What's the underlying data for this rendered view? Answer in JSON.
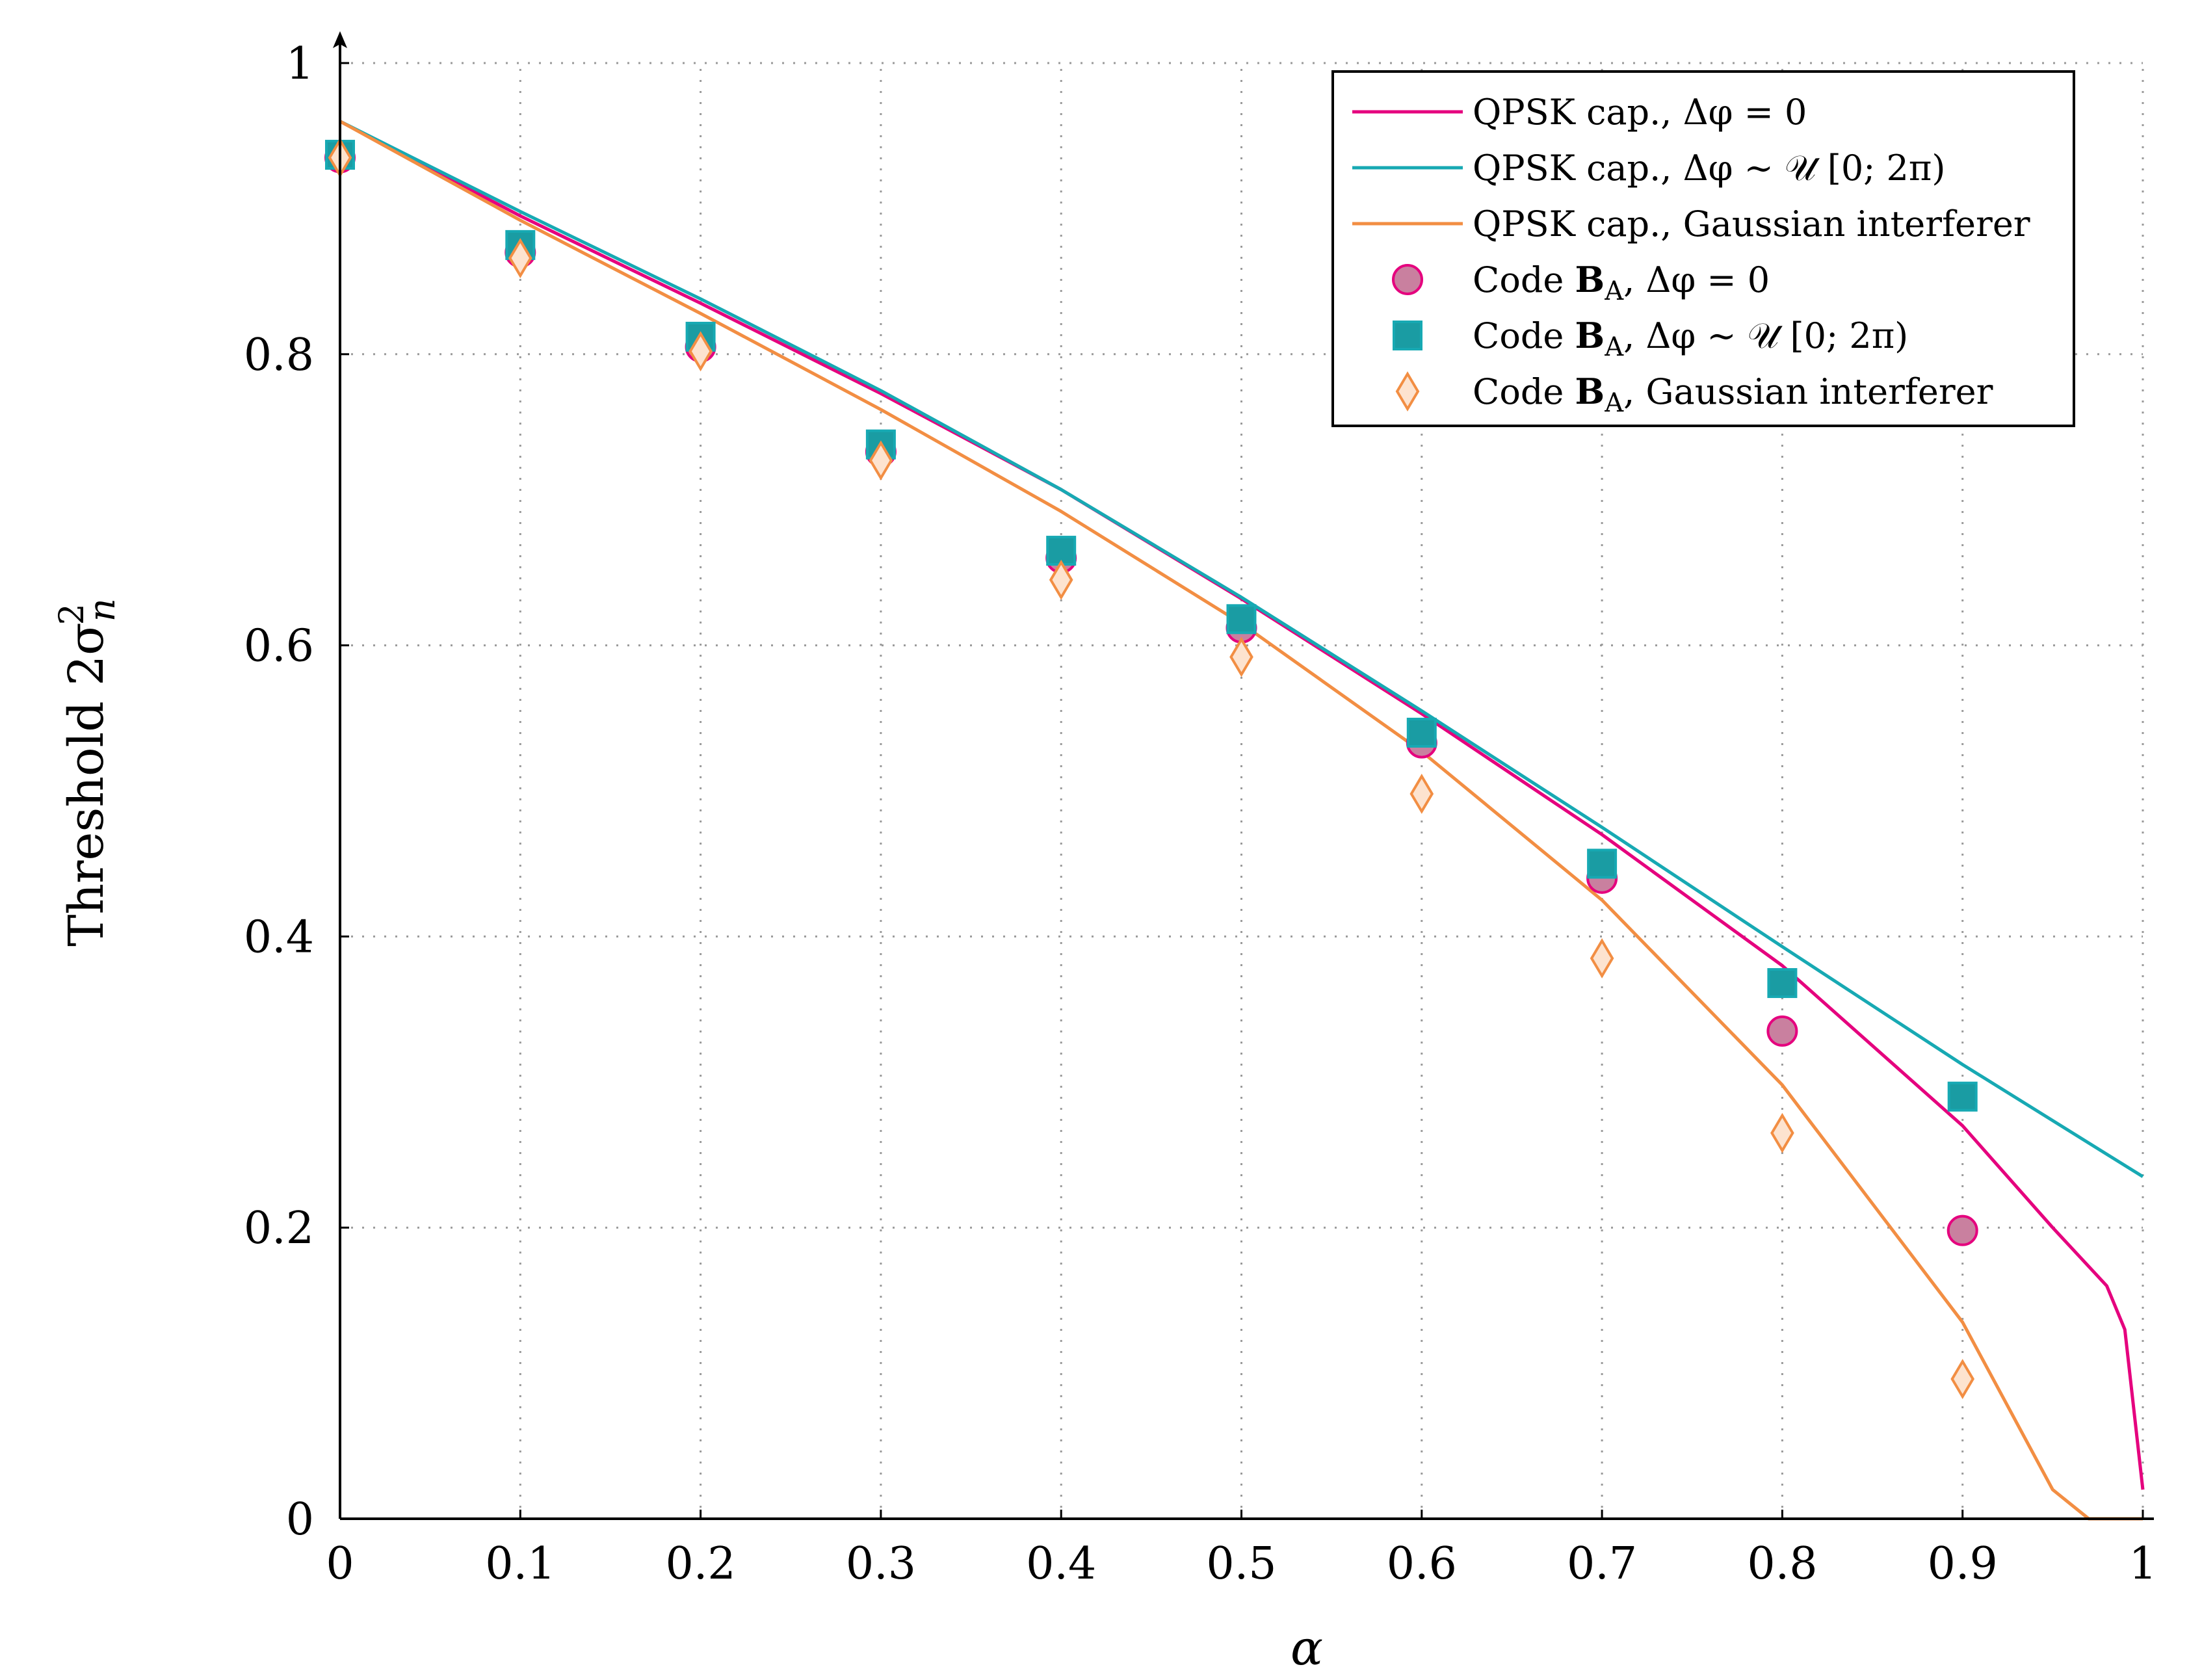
{
  "chart_data": {
    "type": "line",
    "title": "",
    "xlabel": "α",
    "ylabel": "Threshold 2σ²ₙ",
    "ylabel_parts": {
      "main": "Threshold 2σ",
      "sup": "2",
      "sub": "n"
    },
    "xlim": [
      0,
      1
    ],
    "ylim": [
      0,
      1
    ],
    "grid": true,
    "legend_position": "top-right",
    "x_ticks": [
      0,
      0.1,
      0.2,
      0.3,
      0.4,
      0.5,
      0.6,
      0.7,
      0.8,
      0.9,
      1
    ],
    "x_tick_labels": [
      "0",
      "0.1",
      "0.2",
      "0.3",
      "0.4",
      "0.5",
      "0.6",
      "0.7",
      "0.8",
      "0.9",
      "1"
    ],
    "y_ticks": [
      0,
      0.2,
      0.4,
      0.6,
      0.8,
      1
    ],
    "y_tick_labels": [
      "0",
      "0.2",
      "0.4",
      "0.6",
      "0.8",
      "1"
    ],
    "series": [
      {
        "name": "QPSK cap., Δφ = 0",
        "kind": "line",
        "color": "#e5007e",
        "x": [
          0,
          0.1,
          0.2,
          0.3,
          0.4,
          0.5,
          0.6,
          0.7,
          0.8,
          0.9,
          0.95,
          0.98,
          0.99,
          1.0
        ],
        "y": [
          0.96,
          0.895,
          0.835,
          0.773,
          0.707,
          0.632,
          0.553,
          0.47,
          0.38,
          0.27,
          0.2,
          0.16,
          0.13,
          0.02
        ]
      },
      {
        "name": "QPSK cap., Δφ ∼ 𝒰 [0; 2π)",
        "kind": "line",
        "color": "#17a9b3",
        "x": [
          0,
          0.1,
          0.2,
          0.3,
          0.4,
          0.5,
          0.6,
          0.7,
          0.8,
          0.9,
          1.0
        ],
        "y": [
          0.96,
          0.898,
          0.838,
          0.775,
          0.707,
          0.633,
          0.555,
          0.475,
          0.393,
          0.312,
          0.235
        ]
      },
      {
        "name": "QPSK cap., Gaussian interferer",
        "kind": "line",
        "color": "#f28e43",
        "x": [
          0,
          0.1,
          0.2,
          0.3,
          0.4,
          0.5,
          0.6,
          0.7,
          0.8,
          0.9,
          0.95,
          0.97,
          1.0
        ],
        "y": [
          0.96,
          0.892,
          0.828,
          0.762,
          0.692,
          0.615,
          0.527,
          0.425,
          0.298,
          0.135,
          0.02,
          0.0,
          0.0
        ]
      },
      {
        "name": "Code Bₐ, Δφ = 0",
        "legend_main": "Code B",
        "legend_sub": "A",
        "legend_rest": ", Δφ = 0",
        "kind": "scatter",
        "marker": "circle",
        "color": "#e5007e",
        "fill": "#c9809f",
        "x": [
          0,
          0.1,
          0.2,
          0.3,
          0.4,
          0.5,
          0.6,
          0.7,
          0.8,
          0.9
        ],
        "y": [
          0.935,
          0.87,
          0.805,
          0.733,
          0.66,
          0.612,
          0.533,
          0.44,
          0.335,
          0.198
        ]
      },
      {
        "name": "Code Bₐ, Δφ ∼ 𝒰 [0; 2π)",
        "legend_main": "Code B",
        "legend_sub": "A",
        "legend_rest": ", Δφ ∼ 𝒰 [0; 2π)",
        "kind": "scatter",
        "marker": "square",
        "color": "#17a9b3",
        "fill": "#1a9ca3",
        "x": [
          0,
          0.1,
          0.2,
          0.3,
          0.4,
          0.5,
          0.6,
          0.7,
          0.8,
          0.9
        ],
        "y": [
          0.937,
          0.875,
          0.812,
          0.738,
          0.665,
          0.618,
          0.54,
          0.45,
          0.368,
          0.29
        ]
      },
      {
        "name": "Code Bₐ, Gaussian interferer",
        "legend_main": "Code B",
        "legend_sub": "A",
        "legend_rest": ", Gaussian interferer",
        "kind": "scatter",
        "marker": "diamond",
        "color": "#f28e43",
        "fill": "#fde3cf",
        "x": [
          0,
          0.1,
          0.2,
          0.3,
          0.4,
          0.5,
          0.6,
          0.7,
          0.8,
          0.9
        ],
        "y": [
          0.935,
          0.866,
          0.802,
          0.727,
          0.645,
          0.592,
          0.498,
          0.385,
          0.265,
          0.096
        ]
      }
    ]
  }
}
